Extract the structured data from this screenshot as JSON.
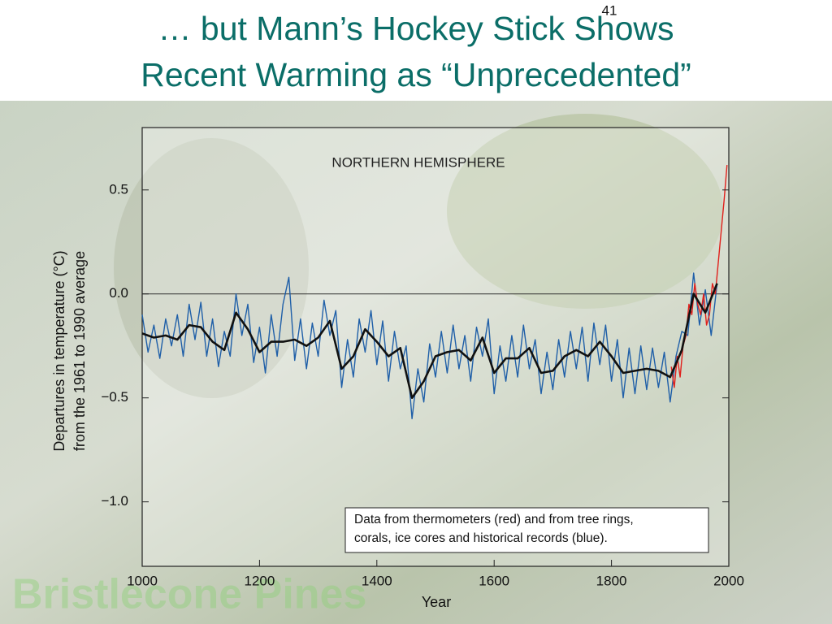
{
  "slide": {
    "title_lines": [
      "… but Mann’s Hockey Stick Shows",
      "Recent Warming as “Unprecedented”"
    ],
    "page_number": "41",
    "watermark": "Bristlecone Pines"
  },
  "chart_data": {
    "type": "line",
    "title": "NORTHERN HEMISPHERE",
    "x_label": "Year",
    "y_label_lines": [
      "Departures in temperature (°C)",
      "from the 1961 to 1990 average"
    ],
    "note_lines": [
      "Data from thermometers (red) and from tree rings,",
      "corals, ice cores and historical records (blue)."
    ],
    "xlim": [
      1000,
      2000
    ],
    "xticks": [
      1000,
      1200,
      1400,
      1600,
      1800,
      2000
    ],
    "ylim": [
      -1.31,
      0.8
    ],
    "yticks": [
      {
        "value": -1.0,
        "label": "−1.0"
      },
      {
        "value": -0.5,
        "label": "−0.5"
      },
      {
        "value": 0.0,
        "label": "0.0"
      },
      0.5
    ],
    "series": [
      {
        "color": "#1f5fa8",
        "x": [
          1000,
          1010,
          1020,
          1030,
          1040,
          1050,
          1060,
          1070,
          1080,
          1090,
          1100,
          1110,
          1120,
          1130,
          1140,
          1150,
          1160,
          1170,
          1180,
          1190,
          1200,
          1210,
          1220,
          1230,
          1240,
          1250,
          1260,
          1270,
          1280,
          1290,
          1300,
          1310,
          1320,
          1330,
          1340,
          1350,
          1360,
          1370,
          1380,
          1390,
          1400,
          1410,
          1420,
          1430,
          1440,
          1450,
          1460,
          1470,
          1480,
          1490,
          1500,
          1510,
          1520,
          1530,
          1540,
          1550,
          1560,
          1570,
          1580,
          1590,
          1600,
          1610,
          1620,
          1630,
          1640,
          1650,
          1660,
          1670,
          1680,
          1690,
          1700,
          1710,
          1720,
          1730,
          1740,
          1750,
          1760,
          1770,
          1780,
          1790,
          1800,
          1810,
          1820,
          1830,
          1840,
          1850,
          1860,
          1870,
          1880,
          1890,
          1900,
          1910,
          1920,
          1930,
          1940,
          1950,
          1960,
          1970,
          1980
        ],
        "values": [
          -0.1,
          -0.28,
          -0.15,
          -0.31,
          -0.12,
          -0.25,
          -0.1,
          -0.3,
          -0.05,
          -0.22,
          -0.04,
          -0.3,
          -0.12,
          -0.35,
          -0.18,
          -0.3,
          0.0,
          -0.2,
          -0.05,
          -0.33,
          -0.16,
          -0.38,
          -0.1,
          -0.3,
          -0.05,
          0.08,
          -0.32,
          -0.12,
          -0.36,
          -0.14,
          -0.3,
          -0.03,
          -0.2,
          -0.08,
          -0.45,
          -0.22,
          -0.4,
          -0.12,
          -0.28,
          -0.08,
          -0.34,
          -0.13,
          -0.42,
          -0.18,
          -0.36,
          -0.25,
          -0.6,
          -0.36,
          -0.52,
          -0.24,
          -0.4,
          -0.18,
          -0.38,
          -0.15,
          -0.36,
          -0.2,
          -0.42,
          -0.16,
          -0.3,
          -0.12,
          -0.48,
          -0.25,
          -0.42,
          -0.2,
          -0.4,
          -0.15,
          -0.36,
          -0.22,
          -0.48,
          -0.28,
          -0.46,
          -0.22,
          -0.4,
          -0.18,
          -0.36,
          -0.16,
          -0.42,
          -0.14,
          -0.34,
          -0.15,
          -0.42,
          -0.22,
          -0.5,
          -0.26,
          -0.48,
          -0.25,
          -0.46,
          -0.26,
          -0.45,
          -0.28,
          -0.52,
          -0.3,
          -0.18,
          -0.2,
          0.1,
          -0.15,
          0.02,
          -0.2,
          0.05
        ]
      },
      {
        "color": "#e0201c",
        "x": [
          1902,
          1907,
          1912,
          1917,
          1922,
          1927,
          1932,
          1937,
          1942,
          1947,
          1952,
          1957,
          1962,
          1967,
          1972,
          1977,
          1982,
          1987,
          1992,
          1997
        ],
        "values": [
          -0.35,
          -0.45,
          -0.3,
          -0.4,
          -0.25,
          -0.2,
          -0.05,
          -0.1,
          0.05,
          -0.05,
          -0.1,
          0.0,
          -0.15,
          -0.1,
          0.05,
          0.0,
          0.15,
          0.3,
          0.45,
          0.62
        ]
      },
      {
        "color": "#111111",
        "x": [
          1000,
          1020,
          1040,
          1060,
          1080,
          1100,
          1120,
          1140,
          1160,
          1180,
          1200,
          1220,
          1240,
          1260,
          1280,
          1300,
          1320,
          1340,
          1360,
          1380,
          1400,
          1420,
          1440,
          1460,
          1480,
          1500,
          1520,
          1540,
          1560,
          1580,
          1600,
          1620,
          1640,
          1660,
          1680,
          1700,
          1720,
          1740,
          1760,
          1780,
          1800,
          1820,
          1840,
          1860,
          1880,
          1900,
          1920,
          1940,
          1960,
          1980
        ],
        "values": [
          -0.19,
          -0.21,
          -0.2,
          -0.22,
          -0.15,
          -0.16,
          -0.23,
          -0.27,
          -0.09,
          -0.17,
          -0.28,
          -0.23,
          -0.23,
          -0.22,
          -0.25,
          -0.21,
          -0.13,
          -0.36,
          -0.3,
          -0.17,
          -0.23,
          -0.3,
          -0.26,
          -0.5,
          -0.42,
          -0.3,
          -0.28,
          -0.27,
          -0.32,
          -0.21,
          -0.38,
          -0.31,
          -0.31,
          -0.26,
          -0.38,
          -0.37,
          -0.3,
          -0.27,
          -0.3,
          -0.23,
          -0.3,
          -0.38,
          -0.37,
          -0.36,
          -0.37,
          -0.4,
          -0.27,
          0.0,
          -0.09,
          0.05
        ]
      }
    ]
  }
}
